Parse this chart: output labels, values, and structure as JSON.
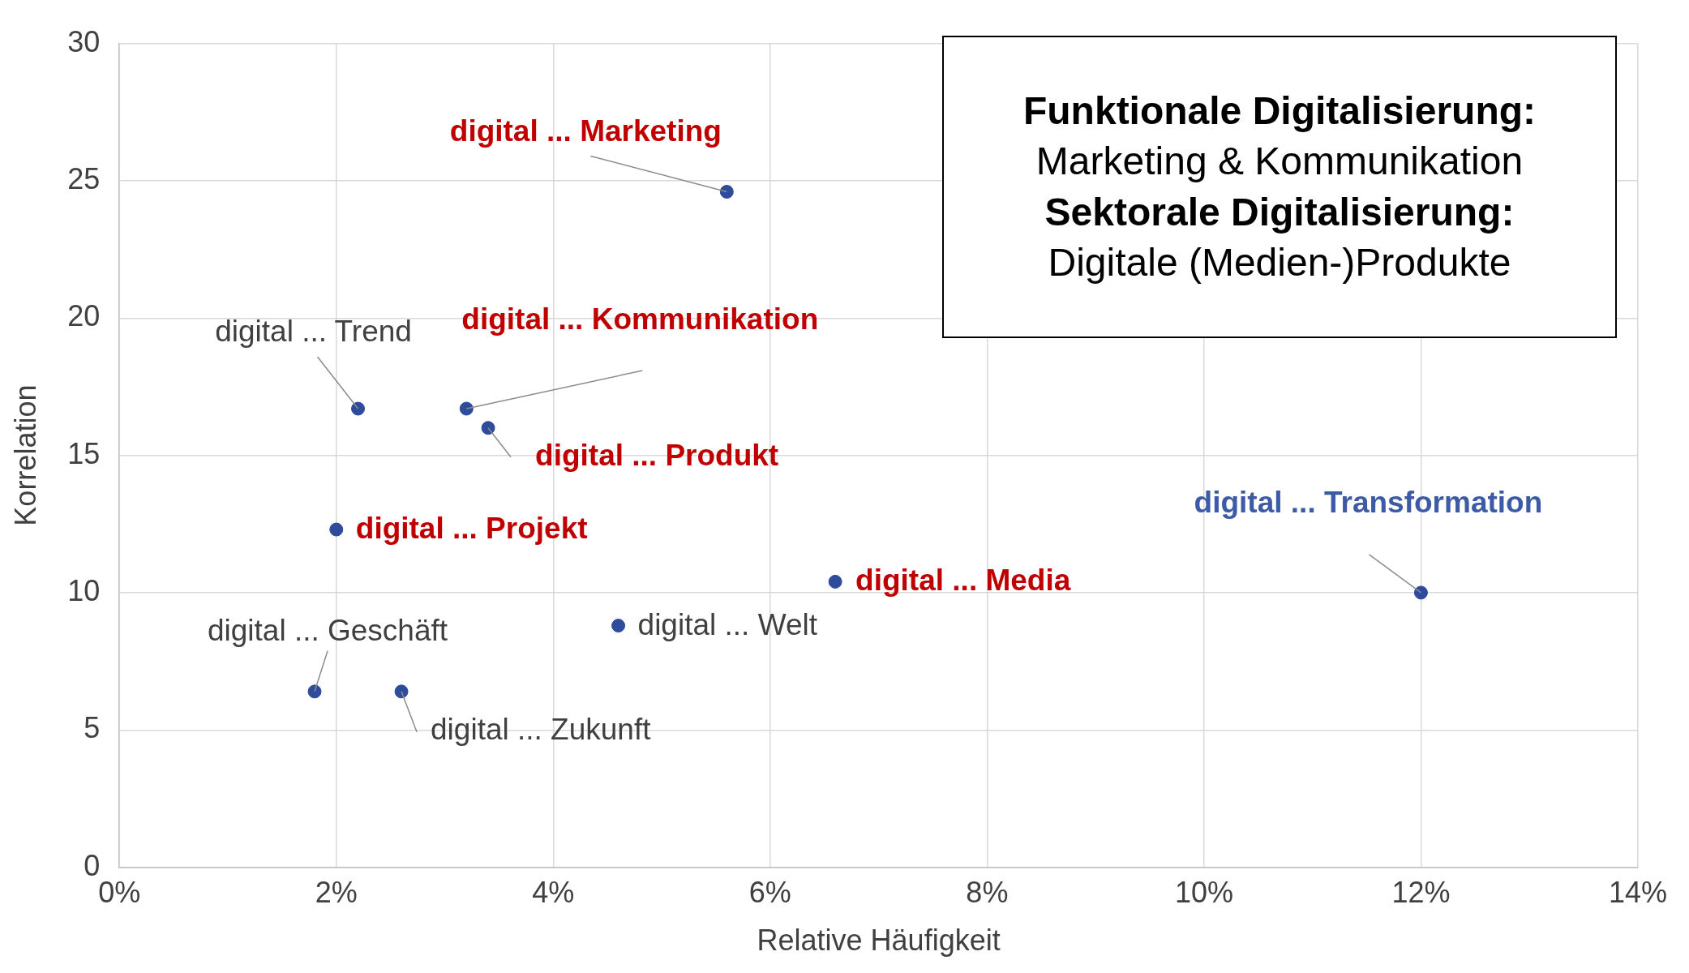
{
  "chart_data": {
    "type": "scatter",
    "xlabel": "Relative Häufigkeit",
    "ylabel": "Korrelation",
    "x": [
      0.056,
      0.032,
      0.034,
      0.022,
      0.02,
      0.066,
      0.046,
      0.018,
      0.026,
      0.12
    ],
    "series": [
      {
        "color": "#2f4b9c",
        "values": [
          24.6,
          16.7,
          16.0,
          16.7,
          12.3,
          10.4,
          8.8,
          6.4,
          6.4,
          10.0
        ]
      }
    ],
    "xlim": [
      0,
      0.14
    ],
    "xticks": [
      {
        "value": 0,
        "label": "0%"
      },
      {
        "value": 0.02,
        "label": "2%"
      },
      {
        "value": 0.04,
        "label": "4%"
      },
      {
        "value": 0.06,
        "label": "6%"
      },
      {
        "value": 0.08,
        "label": "8%"
      },
      {
        "value": 0.1,
        "label": "10%"
      },
      {
        "value": 0.12,
        "label": "12%"
      },
      {
        "value": 0.14,
        "label": "14%"
      }
    ],
    "ylim": [
      0,
      30
    ],
    "yticks": [
      0,
      5,
      10,
      15,
      20,
      25,
      30
    ],
    "grid": true,
    "marker": "circle",
    "legend": false,
    "annotations": [
      {
        "text": "digital ... Marketing",
        "x": 0.056,
        "y": 24.6
      },
      {
        "text": "digital ... Kommunikation",
        "x": 0.032,
        "y": 16.7
      },
      {
        "text": "digital ... Produkt",
        "x": 0.034,
        "y": 16.0
      },
      {
        "text": "digital ... Trend",
        "x": 0.022,
        "y": 16.7
      },
      {
        "text": "digital ... Projekt",
        "x": 0.02,
        "y": 12.3
      },
      {
        "text": "digital ... Media",
        "x": 0.066,
        "y": 10.4
      },
      {
        "text": "digital ... Welt",
        "x": 0.046,
        "y": 8.8
      },
      {
        "text": "digital ... Geschäft",
        "x": 0.018,
        "y": 6.4
      },
      {
        "text": "digital ... Zukunft",
        "x": 0.026,
        "y": 6.4
      },
      {
        "text": "digital ... Transformation",
        "x": 0.12,
        "y": 10.0
      },
      "Funktionale Digitalisierung:",
      "Marketing & Kommunikation",
      "Sektorale Digitalisierung:",
      "Digitale (Medien-)Produkte"
    ]
  }
}
